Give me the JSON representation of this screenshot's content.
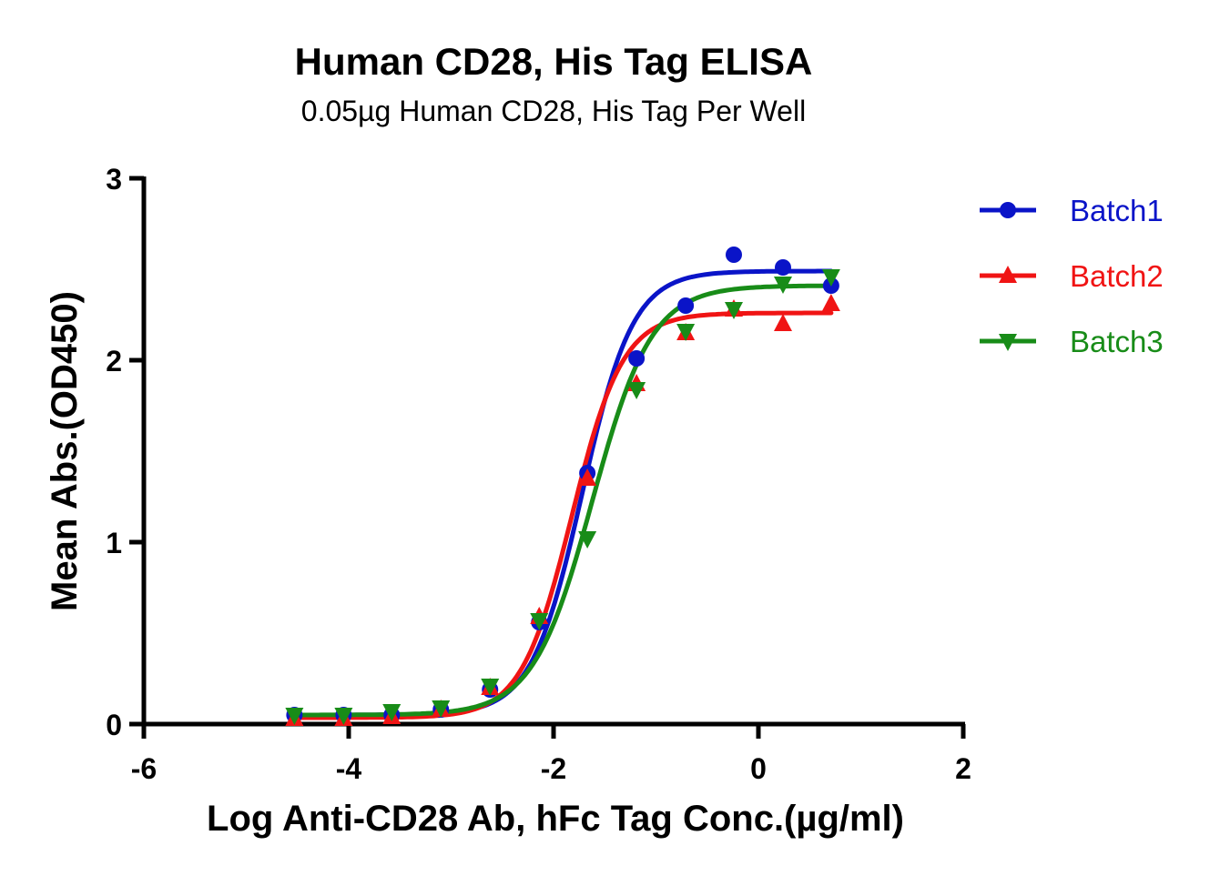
{
  "chart_data": {
    "type": "line",
    "title": "Human CD28, His Tag ELISA",
    "subtitle": "0.05µg Human CD28, His Tag Per Well",
    "xlabel": "Log Anti-CD28 Ab, hFc Tag Conc.(µg/ml)",
    "ylabel": "Mean Abs.(OD450)",
    "xlim": [
      -6,
      2
    ],
    "ylim": [
      0,
      3
    ],
    "xticks": [
      "-6",
      "-4",
      "-2",
      "0",
      "2"
    ],
    "xtick_values": [
      -6,
      -4,
      -2,
      0,
      2
    ],
    "yticks": [
      "0",
      "1",
      "2",
      "3"
    ],
    "ytick_values": [
      0,
      1,
      2,
      3
    ],
    "grid": false,
    "legend_position": "top-right",
    "x": [
      -4.53,
      -4.05,
      -3.58,
      -3.1,
      -2.62,
      -2.14,
      -1.67,
      -1.19,
      -0.71,
      -0.24,
      0.24,
      0.71
    ],
    "series": [
      {
        "name": "Batch1",
        "color": "#0a14c8",
        "marker": "circle",
        "values": [
          0.05,
          0.05,
          0.05,
          0.08,
          0.19,
          0.56,
          1.38,
          2.01,
          2.3,
          2.58,
          2.51,
          2.41
        ],
        "fit": {
          "bottom": 0.05,
          "top": 2.49,
          "logEC50": -1.72,
          "hill": 1.75
        }
      },
      {
        "name": "Batch2",
        "color": "#f01414",
        "marker": "triangle-up",
        "values": [
          0.03,
          0.03,
          0.04,
          0.08,
          0.2,
          0.59,
          1.35,
          1.87,
          2.15,
          2.28,
          2.2,
          2.31
        ],
        "fit": {
          "bottom": 0.035,
          "top": 2.26,
          "logEC50": -1.82,
          "hill": 1.75
        }
      },
      {
        "name": "Batch3",
        "color": "#188c18",
        "marker": "triangle-down",
        "values": [
          0.05,
          0.05,
          0.07,
          0.09,
          0.21,
          0.57,
          1.02,
          1.84,
          2.16,
          2.28,
          2.42,
          2.46
        ],
        "fit": {
          "bottom": 0.05,
          "top": 2.41,
          "logEC50": -1.62,
          "hill": 1.5
        }
      }
    ]
  }
}
